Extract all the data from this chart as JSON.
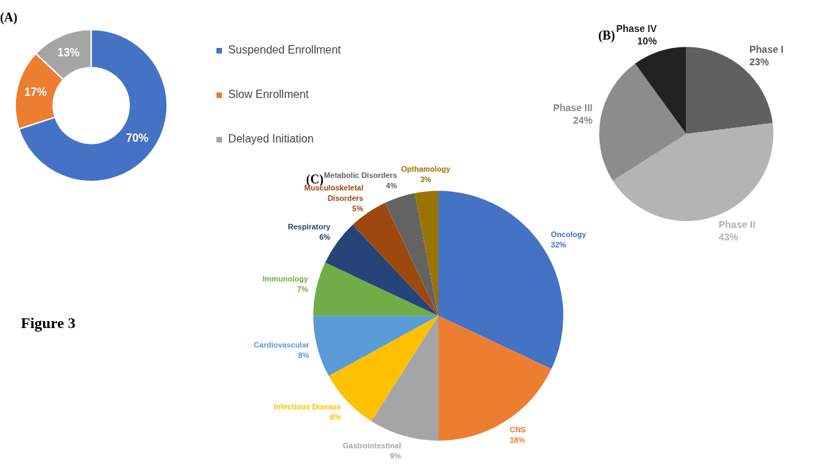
{
  "chart_data": [
    {
      "type": "donut",
      "title": "(A)",
      "categories": [
        "Suspended Enrollment",
        "Slow Enrollment",
        "Delayed Initiation"
      ],
      "values": [
        70,
        17,
        13
      ],
      "colors": [
        "#4472c4",
        "#ed7d31",
        "#a5a5a5"
      ],
      "value_labels": [
        "70%",
        "17%",
        "13%"
      ],
      "legend": "right",
      "annotations": [
        "Figure 3"
      ]
    },
    {
      "type": "pie",
      "title": "(B)",
      "categories": [
        "Phase I",
        "Phase II",
        "Phase III",
        "Phase IV"
      ],
      "values": [
        23,
        43,
        24,
        10
      ],
      "colors": [
        "#606060",
        "#b4b4b4",
        "#8c8c8c",
        "#222222"
      ],
      "value_labels": [
        "23%",
        "43%",
        "24%",
        "10%"
      ],
      "legend": false
    },
    {
      "type": "pie",
      "title": "(C)",
      "categories": [
        "Oncology",
        "CNS",
        "Gastrointestinal",
        "Infectious Disease",
        "Cardiovascular",
        "Immunology",
        "Respiratory",
        "Musculoskeletal Disorders",
        "Metabolic Disorders",
        "Opthamology"
      ],
      "values": [
        32,
        18,
        9,
        8,
        8,
        7,
        6,
        5,
        4,
        3
      ],
      "colors": [
        "#4472c4",
        "#ed7d31",
        "#a5a5a5",
        "#ffc000",
        "#5b9bd5",
        "#70ad47",
        "#264478",
        "#9e480e",
        "#636363",
        "#997300"
      ],
      "value_labels": [
        "32%",
        "18%",
        "9%",
        "8%",
        "8%",
        "7%",
        "6%",
        "5%",
        "4%",
        "3%"
      ],
      "legend": false
    }
  ]
}
